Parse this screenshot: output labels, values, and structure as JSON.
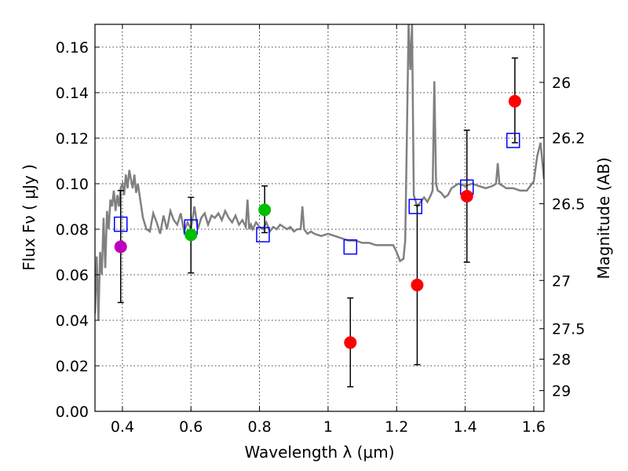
{
  "chart_data": {
    "type": "scatter",
    "xlabel": "Wavelength  λ (μm)",
    "ylabel": "Flux  Fν  ( μJy )",
    "y2label": "Magnitude (AB)",
    "xlim": [
      0.32,
      1.63
    ],
    "ylim": [
      0.0,
      0.17
    ],
    "grid": true,
    "x_ticks": [
      0.4,
      0.6,
      0.8,
      1.0,
      1.2,
      1.4,
      1.6
    ],
    "x_tick_labels": [
      "0.4",
      "0.6",
      "0.8",
      "1",
      "1.2",
      "1.4",
      "1.6"
    ],
    "y_ticks": [
      0.0,
      0.02,
      0.04,
      0.06,
      0.08,
      0.1,
      0.12,
      0.14,
      0.16
    ],
    "y_tick_labels": [
      "0.00",
      "0.02",
      "0.04",
      "0.06",
      "0.08",
      "0.10",
      "0.12",
      "0.14",
      "0.16"
    ],
    "mag_ticks": [
      {
        "label": "26",
        "flux": 0.1445
      },
      {
        "label": "26.2",
        "flux": 0.1202
      },
      {
        "label": "26.5",
        "flux": 0.0912
      },
      {
        "label": "27",
        "flux": 0.0575
      },
      {
        "label": "27.5",
        "flux": 0.0363
      },
      {
        "label": "28",
        "flux": 0.0229
      },
      {
        "label": "29",
        "flux": 0.0091
      }
    ],
    "series": [
      {
        "name": "model_spectrum",
        "kind": "line",
        "color": "#808080",
        "x": [
          0.32,
          0.325,
          0.33,
          0.335,
          0.34,
          0.345,
          0.35,
          0.355,
          0.36,
          0.365,
          0.37,
          0.375,
          0.38,
          0.385,
          0.39,
          0.395,
          0.4,
          0.405,
          0.41,
          0.415,
          0.42,
          0.425,
          0.43,
          0.435,
          0.44,
          0.445,
          0.45,
          0.46,
          0.47,
          0.48,
          0.49,
          0.5,
          0.51,
          0.52,
          0.53,
          0.54,
          0.55,
          0.56,
          0.57,
          0.58,
          0.59,
          0.6,
          0.61,
          0.62,
          0.63,
          0.64,
          0.65,
          0.66,
          0.67,
          0.68,
          0.69,
          0.7,
          0.71,
          0.72,
          0.73,
          0.74,
          0.75,
          0.76,
          0.765,
          0.77,
          0.775,
          0.78,
          0.79,
          0.8,
          0.81,
          0.82,
          0.83,
          0.84,
          0.85,
          0.86,
          0.87,
          0.88,
          0.89,
          0.9,
          0.91,
          0.92,
          0.925,
          0.93,
          0.94,
          0.95,
          0.96,
          0.98,
          1.0,
          1.02,
          1.04,
          1.06,
          1.08,
          1.1,
          1.12,
          1.14,
          1.16,
          1.18,
          1.19,
          1.2,
          1.21,
          1.22,
          1.225,
          1.23,
          1.235,
          1.24,
          1.245,
          1.25,
          1.26,
          1.27,
          1.28,
          1.29,
          1.3,
          1.305,
          1.31,
          1.315,
          1.32,
          1.33,
          1.34,
          1.35,
          1.36,
          1.38,
          1.4,
          1.42,
          1.44,
          1.46,
          1.48,
          1.49,
          1.495,
          1.5,
          1.52,
          1.54,
          1.56,
          1.58,
          1.6,
          1.61,
          1.62,
          1.63
        ],
        "y": [
          0.043,
          0.068,
          0.04,
          0.07,
          0.06,
          0.085,
          0.063,
          0.088,
          0.08,
          0.093,
          0.09,
          0.097,
          0.088,
          0.095,
          0.09,
          0.098,
          0.1,
          0.095,
          0.104,
          0.098,
          0.106,
          0.102,
          0.098,
          0.104,
          0.096,
          0.1,
          0.095,
          0.085,
          0.08,
          0.079,
          0.087,
          0.083,
          0.078,
          0.086,
          0.08,
          0.088,
          0.084,
          0.082,
          0.087,
          0.079,
          0.083,
          0.08,
          0.09,
          0.08,
          0.085,
          0.087,
          0.082,
          0.086,
          0.085,
          0.087,
          0.084,
          0.088,
          0.085,
          0.083,
          0.086,
          0.082,
          0.084,
          0.081,
          0.093,
          0.08,
          0.082,
          0.08,
          0.083,
          0.081,
          0.08,
          0.083,
          0.079,
          0.081,
          0.08,
          0.082,
          0.081,
          0.08,
          0.081,
          0.079,
          0.08,
          0.08,
          0.09,
          0.08,
          0.078,
          0.079,
          0.078,
          0.077,
          0.078,
          0.077,
          0.076,
          0.075,
          0.075,
          0.074,
          0.074,
          0.073,
          0.073,
          0.073,
          0.073,
          0.07,
          0.066,
          0.067,
          0.075,
          0.12,
          0.17,
          0.15,
          0.17,
          0.095,
          0.09,
          0.092,
          0.094,
          0.092,
          0.095,
          0.097,
          0.145,
          0.1,
          0.097,
          0.096,
          0.094,
          0.095,
          0.098,
          0.1,
          0.099,
          0.1,
          0.099,
          0.098,
          0.099,
          0.1,
          0.109,
          0.1,
          0.098,
          0.098,
          0.097,
          0.097,
          0.101,
          0.112,
          0.118,
          0.102
        ]
      },
      {
        "name": "model_bandpass_flux",
        "kind": "open_square",
        "color": "#0000ff",
        "x": [
          0.395,
          0.6,
          0.81,
          1.065,
          1.255,
          1.405,
          1.54
        ],
        "y": [
          0.0822,
          0.081,
          0.0776,
          0.0722,
          0.09,
          0.0985,
          0.119
        ]
      },
      {
        "name": "observed_magenta",
        "kind": "point",
        "color": "#bf00bf",
        "x": [
          0.395
        ],
        "y": [
          0.0723
        ],
        "yerr_low": [
          0.0478
        ],
        "yerr_high": [
          0.097
        ]
      },
      {
        "name": "observed_green",
        "kind": "point",
        "color": "#00bf00",
        "x": [
          0.6,
          0.815
        ],
        "y": [
          0.0775,
          0.0885
        ],
        "yerr_low": [
          0.0608,
          0.0785
        ],
        "yerr_high": [
          0.094,
          0.099
        ]
      },
      {
        "name": "observed_red",
        "kind": "point",
        "color": "#ff0000",
        "x": [
          1.065,
          1.26,
          1.405,
          1.545
        ],
        "y": [
          0.0302,
          0.0555,
          0.0945,
          0.1362
        ],
        "yerr_low": [
          0.0108,
          0.0205,
          0.0655,
          0.118
        ],
        "yerr_high": [
          0.0498,
          0.0905,
          0.1235,
          0.1552
        ]
      }
    ]
  }
}
